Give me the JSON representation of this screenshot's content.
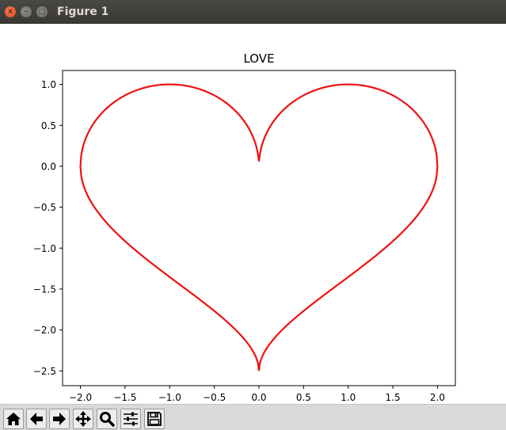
{
  "window": {
    "title": "Figure 1"
  },
  "toolbar": {
    "buttons": [
      {
        "name": "home-icon"
      },
      {
        "name": "back-arrow-icon"
      },
      {
        "name": "forward-arrow-icon"
      },
      {
        "name": "pan-icon"
      },
      {
        "name": "zoom-icon"
      },
      {
        "name": "subplots-config-icon"
      },
      {
        "name": "save-icon"
      }
    ]
  },
  "colors": {
    "line": "#ee1111",
    "axes": "#000000"
  },
  "chart_data": {
    "type": "line",
    "title": "LOVE",
    "xlabel": "",
    "ylabel": "",
    "xlim": [
      -2.2,
      2.2
    ],
    "ylim": [
      -2.68,
      1.17
    ],
    "grid": false,
    "xticks": [
      -2.0,
      -1.5,
      -1.0,
      -0.5,
      0.0,
      0.5,
      1.0,
      1.5,
      2.0
    ],
    "xtick_labels": [
      "−2.0",
      "−1.5",
      "−1.0",
      "−0.5",
      "0.0",
      "0.5",
      "1.0",
      "1.5",
      "2.0"
    ],
    "yticks": [
      1.0,
      0.5,
      0.0,
      -0.5,
      -1.0,
      -1.5,
      -2.0,
      -2.5
    ],
    "ytick_labels": [
      "1.0",
      "0.5",
      "0.0",
      "−0.5",
      "−1.0",
      "−1.5",
      "−2.0",
      "−2.5"
    ],
    "series": [
      {
        "upper": {
          "x": [
            -2.0,
            -1.9,
            -1.75,
            -1.5,
            -1.25,
            -1.0,
            -0.75,
            -0.5,
            -0.3,
            -0.15,
            -0.05,
            0.0,
            0.05,
            0.15,
            0.3,
            0.5,
            0.75,
            1.0,
            1.25,
            1.5,
            1.75,
            1.9,
            2.0
          ],
          "y": [
            0.0,
            0.44,
            0.66,
            0.87,
            0.97,
            1.0,
            0.97,
            0.87,
            0.71,
            0.53,
            0.31,
            0.06,
            0.31,
            0.53,
            0.71,
            0.87,
            0.97,
            1.0,
            0.97,
            0.87,
            0.66,
            0.44,
            0.0
          ]
        },
        "lower": {
          "x": [
            -2.0,
            -1.9,
            -1.75,
            -1.5,
            -1.25,
            -1.0,
            -0.75,
            -0.5,
            -0.3,
            -0.15,
            -0.05,
            0.0,
            0.05,
            0.15,
            0.3,
            0.5,
            0.75,
            1.0,
            1.25,
            1.5,
            1.75,
            1.9,
            2.0
          ],
          "y": [
            0.0,
            -0.47,
            -0.75,
            -1.07,
            -1.31,
            -1.52,
            -1.72,
            -1.92,
            -2.09,
            -2.24,
            -2.38,
            -2.5,
            -2.38,
            -2.24,
            -2.09,
            -1.92,
            -1.72,
            -1.52,
            -1.31,
            -1.07,
            -0.75,
            -0.47,
            0.0
          ]
        }
      }
    ]
  }
}
